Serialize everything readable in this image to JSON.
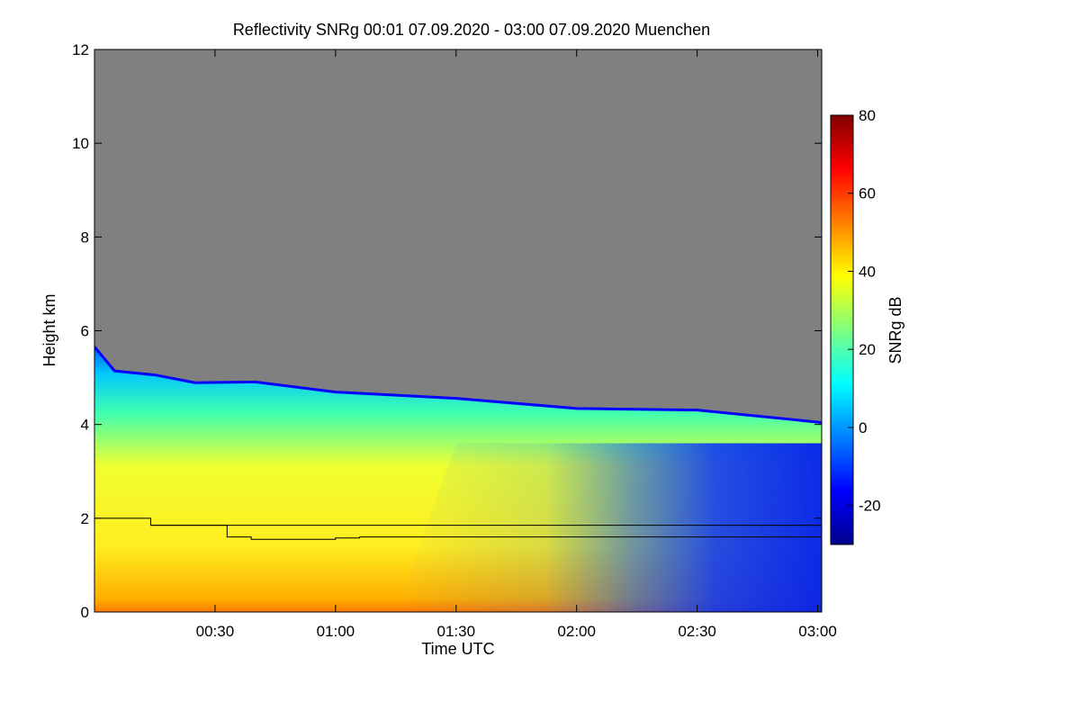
{
  "chart_data": {
    "type": "heatmap",
    "title": "Reflectivity SNRg   00:01 07.09.2020 - 03:00 07.09.2020 Muenchen",
    "xlabel": "Time UTC",
    "ylabel": "Height km",
    "xlim_minutes": [
      0,
      181
    ],
    "ylim": [
      0,
      12
    ],
    "x_ticks": [
      {
        "label": "00:30",
        "minutes": 30
      },
      {
        "label": "01:00",
        "minutes": 60
      },
      {
        "label": "01:30",
        "minutes": 90
      },
      {
        "label": "02:00",
        "minutes": 120
      },
      {
        "label": "02:30",
        "minutes": 150
      },
      {
        "label": "03:00",
        "minutes": 180
      }
    ],
    "y_ticks": [
      {
        "label": "0",
        "value": 0
      },
      {
        "label": "2",
        "value": 2
      },
      {
        "label": "4",
        "value": 4
      },
      {
        "label": "6",
        "value": 6
      },
      {
        "label": "8",
        "value": 8
      },
      {
        "label": "10",
        "value": 10
      },
      {
        "label": "12",
        "value": 12
      }
    ],
    "colorbar": {
      "label": "SNRg dB",
      "range": [
        -30,
        80
      ],
      "ticks": [
        {
          "label": "80",
          "value": 80
        },
        {
          "label": "60",
          "value": 60
        },
        {
          "label": "40",
          "value": 40
        },
        {
          "label": "20",
          "value": 20
        },
        {
          "label": "0",
          "value": 0
        },
        {
          "label": "-20",
          "value": -20
        }
      ],
      "colors": [
        "#00008c",
        "#0000ff",
        "#0080ff",
        "#00ffff",
        "#7fff80",
        "#ffff00",
        "#ff8000",
        "#ff0000",
        "#800000"
      ]
    },
    "no_signal_color": "#808080",
    "echo_top_km": [
      {
        "minutes": 0,
        "km": 5.6
      },
      {
        "minutes": 5,
        "km": 5.2
      },
      {
        "minutes": 15,
        "km": 5.0
      },
      {
        "minutes": 25,
        "km": 4.95
      },
      {
        "minutes": 40,
        "km": 4.85
      },
      {
        "minutes": 60,
        "km": 4.75
      },
      {
        "minutes": 90,
        "km": 4.5
      },
      {
        "minutes": 120,
        "km": 4.4
      },
      {
        "minutes": 150,
        "km": 4.25
      },
      {
        "minutes": 181,
        "km": 4.1
      }
    ],
    "lines": [
      {
        "x": [
          0,
          14,
          14,
          33,
          33,
          39,
          39,
          60,
          60,
          66,
          66,
          181
        ],
        "y": [
          2.0,
          2.0,
          1.85,
          1.85,
          1.6,
          1.6,
          1.55,
          1.55,
          1.58,
          1.58,
          1.6,
          1.6
        ]
      },
      {
        "x": [
          14,
          181
        ],
        "y": [
          1.85,
          1.85
        ]
      }
    ]
  }
}
